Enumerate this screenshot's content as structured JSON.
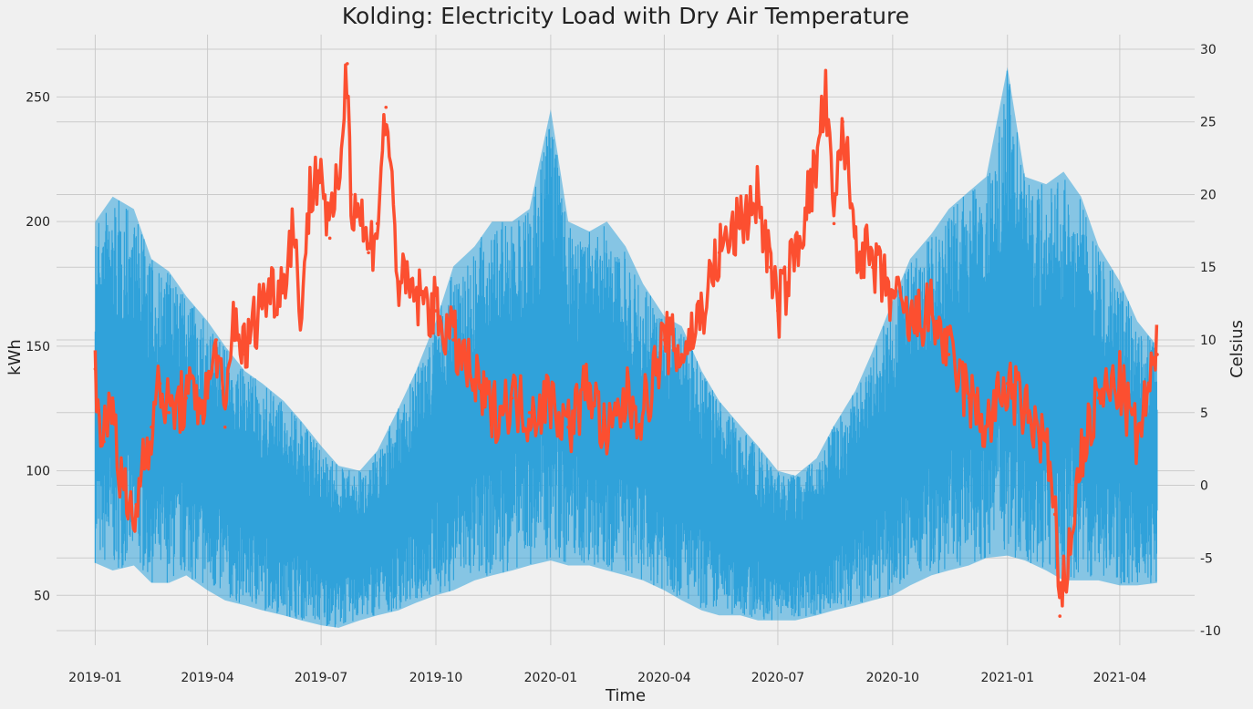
{
  "chart_data": {
    "type": "line",
    "title": "Kolding: Electricity Load with Dry Air Temperature",
    "xlabel": "Time",
    "ylabel": "kWh",
    "ylabel_right": "Celsius",
    "grid": true,
    "x_range": [
      "2018-12-01",
      "2021-05-31"
    ],
    "y_left_range": [
      30,
      275
    ],
    "y_right_range": [
      -11,
      31
    ],
    "x_ticks": [
      "2019-01",
      "2019-04",
      "2019-07",
      "2019-10",
      "2020-01",
      "2020-04",
      "2020-07",
      "2020-10",
      "2021-01",
      "2021-04"
    ],
    "y_left_ticks": [
      50,
      100,
      150,
      200,
      250
    ],
    "y_right_ticks": [
      -10,
      -5,
      0,
      5,
      10,
      15,
      20,
      25,
      30
    ],
    "colors": {
      "load": "#30a2da",
      "temperature": "#fc4f30",
      "background": "#f0f0f0",
      "grid": "#cbcbcb"
    },
    "series": [
      {
        "name": "",
        "axis": "left",
        "color": "#30a2da",
        "kind": "min-max band (hourly load envelope)",
        "x": [
          "2019-01-01",
          "2019-01-15",
          "2019-02-01",
          "2019-02-15",
          "2019-03-01",
          "2019-03-15",
          "2019-04-01",
          "2019-04-15",
          "2019-05-01",
          "2019-05-15",
          "2019-06-01",
          "2019-06-15",
          "2019-07-01",
          "2019-07-15",
          "2019-08-01",
          "2019-08-15",
          "2019-09-01",
          "2019-09-15",
          "2019-10-01",
          "2019-10-15",
          "2019-11-01",
          "2019-11-15",
          "2019-12-01",
          "2019-12-15",
          "2020-01-01",
          "2020-01-15",
          "2020-02-01",
          "2020-02-15",
          "2020-03-01",
          "2020-03-15",
          "2020-04-01",
          "2020-04-15",
          "2020-05-01",
          "2020-05-15",
          "2020-06-01",
          "2020-06-15",
          "2020-07-01",
          "2020-07-15",
          "2020-08-01",
          "2020-08-15",
          "2020-09-01",
          "2020-09-15",
          "2020-10-01",
          "2020-10-15",
          "2020-11-01",
          "2020-11-15",
          "2020-12-01",
          "2020-12-15",
          "2021-01-01",
          "2021-01-15",
          "2021-02-01",
          "2021-02-15",
          "2021-03-01",
          "2021-03-15",
          "2021-04-01",
          "2021-04-15",
          "2021-05-01"
        ],
        "min": [
          63,
          60,
          62,
          55,
          55,
          58,
          52,
          48,
          46,
          44,
          42,
          40,
          38,
          37,
          40,
          42,
          44,
          47,
          50,
          52,
          56,
          58,
          60,
          62,
          64,
          62,
          62,
          60,
          58,
          56,
          52,
          48,
          44,
          42,
          42,
          40,
          40,
          40,
          42,
          44,
          46,
          48,
          50,
          54,
          58,
          60,
          62,
          65,
          66,
          64,
          60,
          56,
          56,
          56,
          54,
          54,
          55
        ],
        "max": [
          200,
          210,
          205,
          185,
          180,
          170,
          160,
          150,
          140,
          135,
          128,
          120,
          110,
          102,
          100,
          108,
          125,
          140,
          160,
          182,
          190,
          200,
          200,
          205,
          245,
          200,
          196,
          200,
          190,
          175,
          162,
          158,
          140,
          128,
          118,
          110,
          100,
          98,
          105,
          118,
          132,
          148,
          168,
          185,
          195,
          205,
          212,
          218,
          262,
          218,
          215,
          220,
          210,
          190,
          176,
          160,
          150
        ]
      },
      {
        "name": "",
        "axis": "right",
        "color": "#fc4f30",
        "x": [
          "2019-01-01",
          "2019-01-08",
          "2019-01-15",
          "2019-01-22",
          "2019-02-01",
          "2019-02-08",
          "2019-02-15",
          "2019-02-22",
          "2019-03-01",
          "2019-03-15",
          "2019-04-01",
          "2019-04-08",
          "2019-04-15",
          "2019-04-22",
          "2019-05-01",
          "2019-05-15",
          "2019-06-01",
          "2019-06-08",
          "2019-06-15",
          "2019-06-22",
          "2019-07-01",
          "2019-07-08",
          "2019-07-15",
          "2019-07-22",
          "2019-07-25",
          "2019-08-01",
          "2019-08-08",
          "2019-08-15",
          "2019-08-22",
          "2019-09-01",
          "2019-09-15",
          "2019-10-01",
          "2019-10-15",
          "2019-11-01",
          "2019-11-15",
          "2019-12-01",
          "2019-12-15",
          "2020-01-01",
          "2020-01-15",
          "2020-02-01",
          "2020-02-15",
          "2020-03-01",
          "2020-03-15",
          "2020-04-01",
          "2020-04-15",
          "2020-05-01",
          "2020-05-15",
          "2020-06-01",
          "2020-06-15",
          "2020-06-25",
          "2020-07-01",
          "2020-07-15",
          "2020-08-01",
          "2020-08-08",
          "2020-08-15",
          "2020-08-22",
          "2020-09-01",
          "2020-09-15",
          "2020-10-01",
          "2020-10-15",
          "2020-11-01",
          "2020-11-15",
          "2020-12-01",
          "2020-12-15",
          "2021-01-01",
          "2021-01-15",
          "2021-02-01",
          "2021-02-08",
          "2021-02-12",
          "2021-02-20",
          "2021-03-01",
          "2021-03-15",
          "2021-04-01",
          "2021-04-15",
          "2021-05-01"
        ],
        "y": [
          8,
          3,
          6,
          0,
          -3,
          2,
          4,
          7,
          5,
          6,
          6,
          10,
          4,
          12,
          9,
          13,
          14,
          18,
          12,
          20,
          22,
          17,
          21,
          29,
          20,
          19,
          16,
          18,
          26,
          14,
          13,
          12,
          10,
          7,
          5,
          6,
          5,
          6,
          4,
          7,
          3,
          6,
          5,
          10,
          9,
          12,
          16,
          18,
          20,
          15,
          12,
          16,
          22,
          27,
          18,
          25,
          17,
          15,
          13,
          11,
          12,
          9,
          6,
          4,
          7,
          5,
          3,
          -2,
          -9,
          -4,
          2,
          6,
          7,
          3,
          9
        ]
      }
    ]
  }
}
